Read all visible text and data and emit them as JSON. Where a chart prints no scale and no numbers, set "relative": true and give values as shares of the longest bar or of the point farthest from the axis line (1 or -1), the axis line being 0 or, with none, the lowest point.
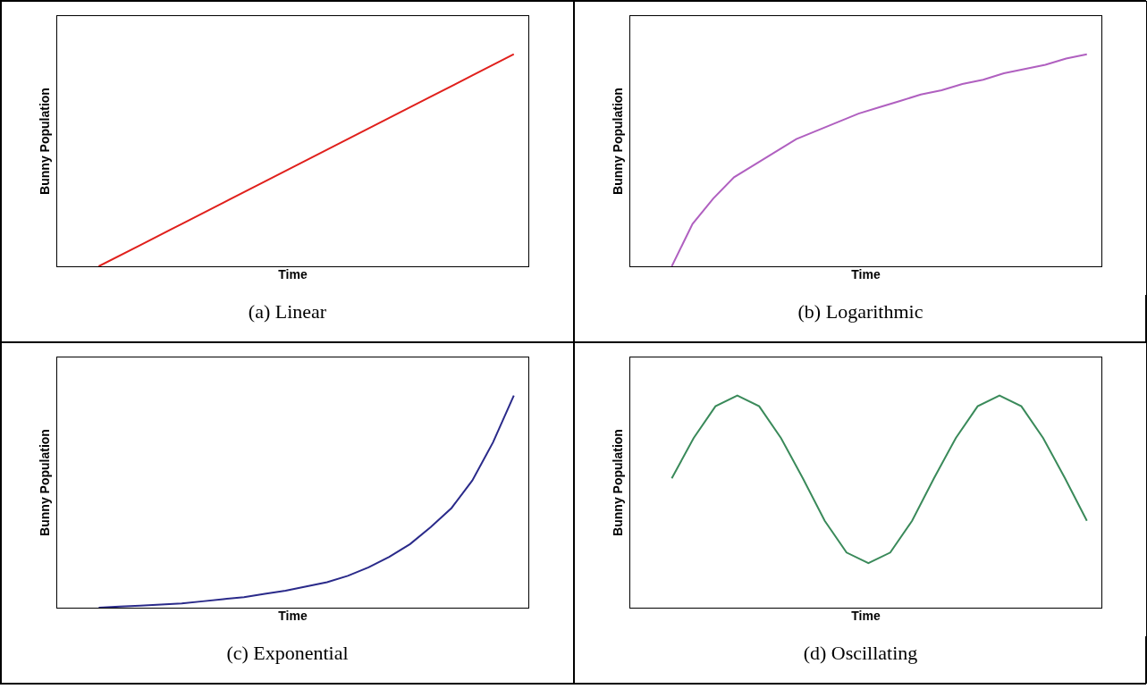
{
  "chart_data": [
    {
      "type": "line",
      "relative": true,
      "xlabel": "Time",
      "ylabel": "Bunny Population",
      "annotations": [
        "(a) Linear"
      ],
      "categories": [
        null,
        null,
        null,
        null,
        null,
        null,
        null,
        null,
        null,
        null,
        null
      ],
      "series": [
        {
          "color": "#e0201c",
          "values": [
            0,
            0.1,
            0.2,
            0.3,
            0.4,
            0.5,
            0.6,
            0.7,
            0.8,
            0.9,
            1
          ]
        }
      ]
    },
    {
      "type": "line",
      "relative": true,
      "xlabel": "Time",
      "ylabel": "Bunny Population",
      "annotations": [
        "(b) Logarithmic"
      ],
      "categories": [
        null,
        null,
        null,
        null,
        null,
        null,
        null,
        null,
        null,
        null,
        null,
        null,
        null,
        null,
        null,
        null,
        null,
        null,
        null,
        null,
        null
      ],
      "series": [
        {
          "color": "#b060c0",
          "values": [
            0,
            0.2,
            0.32,
            0.42,
            0.48,
            0.54,
            0.6,
            0.64,
            0.68,
            0.72,
            0.75,
            0.78,
            0.81,
            0.83,
            0.86,
            0.88,
            0.91,
            0.93,
            0.95,
            0.98,
            1
          ]
        }
      ]
    },
    {
      "type": "line",
      "relative": true,
      "xlabel": "Time",
      "ylabel": "Bunny Population",
      "annotations": [
        "(c) Exponential"
      ],
      "categories": [
        null,
        null,
        null,
        null,
        null,
        null,
        null,
        null,
        null,
        null,
        null,
        null,
        null,
        null,
        null,
        null,
        null,
        null,
        null,
        null,
        null
      ],
      "series": [
        {
          "color": "#2a2a8a",
          "values": [
            0,
            0.005,
            0.01,
            0.015,
            0.02,
            0.03,
            0.04,
            0.05,
            0.065,
            0.08,
            0.1,
            0.12,
            0.15,
            0.19,
            0.24,
            0.3,
            0.38,
            0.47,
            0.6,
            0.78,
            1
          ]
        }
      ]
    },
    {
      "type": "line",
      "relative": true,
      "xlabel": "Time",
      "ylabel": "Bunny Population",
      "annotations": [
        "(d) Oscillating"
      ],
      "categories": [
        null,
        null,
        null,
        null,
        null,
        null,
        null,
        null,
        null,
        null,
        null,
        null,
        null,
        null,
        null,
        null,
        null,
        null,
        null,
        null
      ],
      "series": [
        {
          "color": "#3a8a5a",
          "values": [
            0.61,
            0.8,
            0.95,
            1,
            0.95,
            0.8,
            0.61,
            0.41,
            0.26,
            0.21,
            0.26,
            0.41,
            0.61,
            0.8,
            0.95,
            1,
            0.95,
            0.8,
            0.61,
            0.41
          ]
        }
      ]
    }
  ]
}
